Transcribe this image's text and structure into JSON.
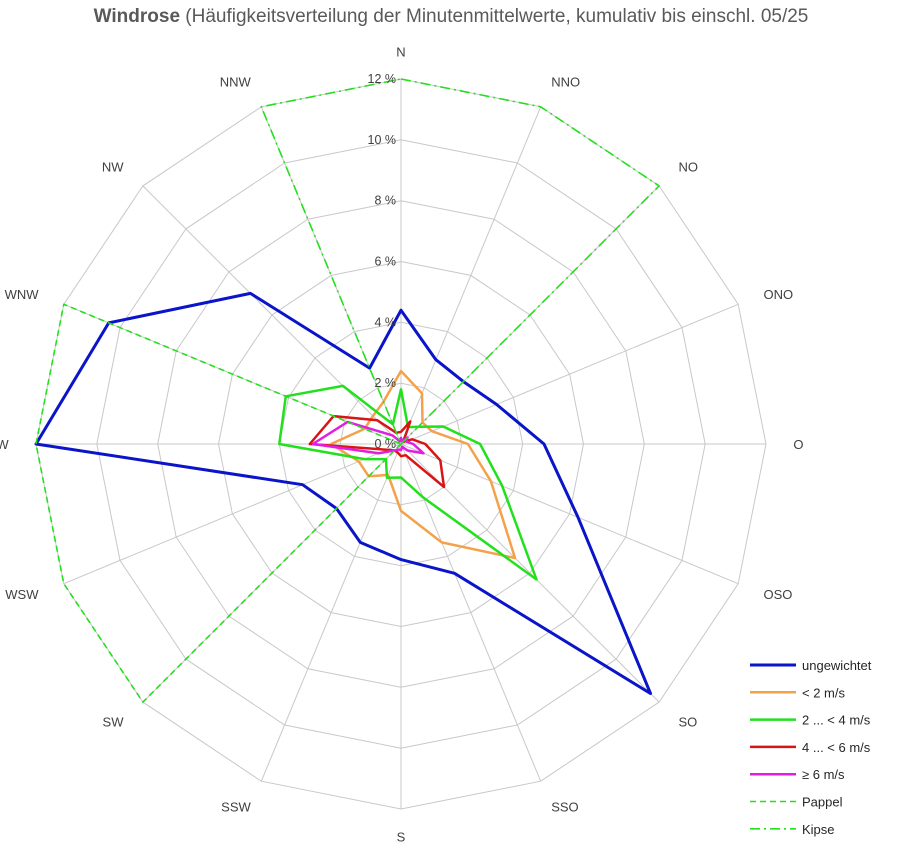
{
  "chart_data": {
    "type": "radar",
    "title_bold": "Windrose",
    "title_rest": " (Häufigkeitsverteilung der Minutenmittelwerte, kumulativ bis einschl. 05/25",
    "categories": [
      "N",
      "NNO",
      "NO",
      "ONO",
      "O",
      "OSO",
      "SO",
      "SSO",
      "S",
      "SSW",
      "SW",
      "WSW",
      "W",
      "WNW",
      "NW",
      "NNW"
    ],
    "radial_range": [
      0,
      12
    ],
    "ticks": [
      0,
      2,
      4,
      6,
      8,
      10,
      12
    ],
    "tick_labels": [
      "0 %",
      "2 %",
      "4 %",
      "6 %",
      "8 %",
      "10 %",
      "12 %"
    ],
    "grid": true,
    "legend_position": "bottom-right",
    "series": [
      {
        "name": "ungewichtet",
        "color": "#0a14c8",
        "dash": "solid",
        "width": 3,
        "values": [
          4.4,
          3.0,
          2.9,
          3.4,
          4.7,
          6.3,
          11.6,
          4.6,
          3.8,
          3.5,
          3.0,
          3.5,
          12.0,
          10.4,
          7.0,
          2.7
        ]
      },
      {
        "name": "< 2 m/s",
        "color": "#f4a24a",
        "dash": "solid",
        "width": 2.5,
        "values": [
          2.4,
          1.8,
          1.0,
          1.1,
          2.2,
          3.2,
          5.3,
          3.5,
          2.2,
          1.1,
          1.5,
          1.5,
          2.3,
          1.3,
          1.3,
          1.5
        ]
      },
      {
        "name": "2 ... < 4 m/s",
        "color": "#22e01c",
        "dash": "solid",
        "width": 2.5,
        "values": [
          1.8,
          0.6,
          0.8,
          1.5,
          2.6,
          3.6,
          6.3,
          1.9,
          1.1,
          1.2,
          0.7,
          1.3,
          4.0,
          4.1,
          2.7,
          0.7
        ]
      },
      {
        "name": "4 ... < 6 m/s",
        "color": "#d81414",
        "dash": "solid",
        "width": 2.5,
        "values": [
          0.4,
          0.8,
          0.1,
          0.4,
          0.8,
          1.4,
          2.0,
          0.4,
          0.4,
          0.3,
          0.3,
          0.5,
          3.0,
          2.4,
          1.1,
          0.4
        ]
      },
      {
        "name": "≥ 6 m/s",
        "color": "#e21ee2",
        "dash": "solid",
        "width": 2.5,
        "values": [
          0.2,
          0.1,
          0.3,
          0.2,
          0.4,
          0.8,
          0.3,
          0.1,
          0.2,
          0.2,
          0.3,
          0.8,
          2.9,
          1.9,
          0.4,
          0.1
        ]
      },
      {
        "name": "Pappel",
        "color": "#22e01c",
        "dash": "dashed",
        "width": 1.6,
        "values": [
          0,
          0,
          0,
          0,
          0,
          0,
          0,
          0,
          0,
          0,
          12.0,
          12.0,
          12.0,
          12.0,
          0,
          0
        ]
      },
      {
        "name": "Kipse",
        "color": "#22e01c",
        "dash": "dashdot",
        "width": 1.6,
        "values": [
          12.0,
          12.0,
          12.0,
          0,
          0,
          0,
          0,
          0,
          0,
          0,
          0,
          0,
          0,
          0,
          0,
          12.0
        ]
      }
    ]
  }
}
